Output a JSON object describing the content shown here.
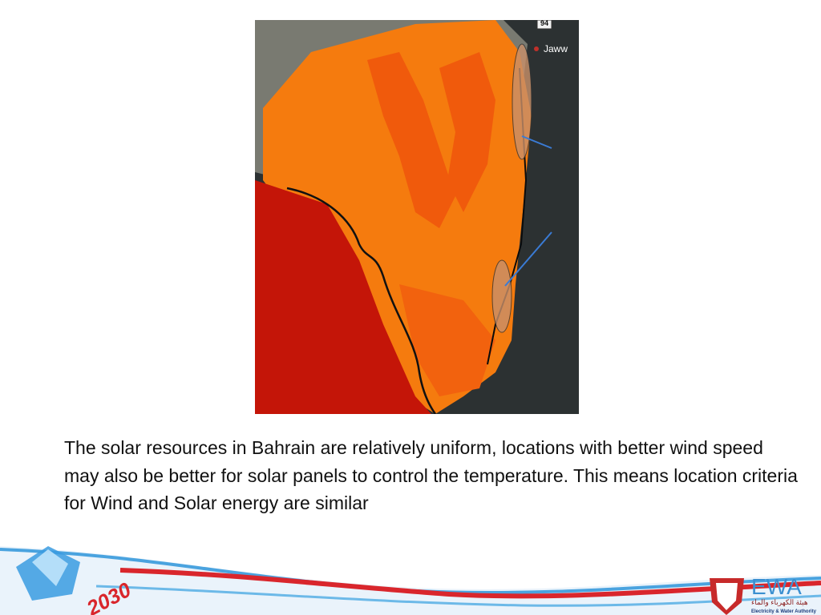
{
  "map": {
    "road_label": "94",
    "place_label": "Jaww"
  },
  "body": {
    "text": "The solar resources in Bahrain are relatively uniform, locations with better wind speed may also be better for solar panels to control the temperature. This means location criteria for Wind and Solar energy are similar"
  },
  "footer": {
    "vision_logo": "2030",
    "brand": "EWA",
    "brand_arabic": "هيئة الكهرباء والماء",
    "brand_english": "Electricity & Water Authority"
  }
}
